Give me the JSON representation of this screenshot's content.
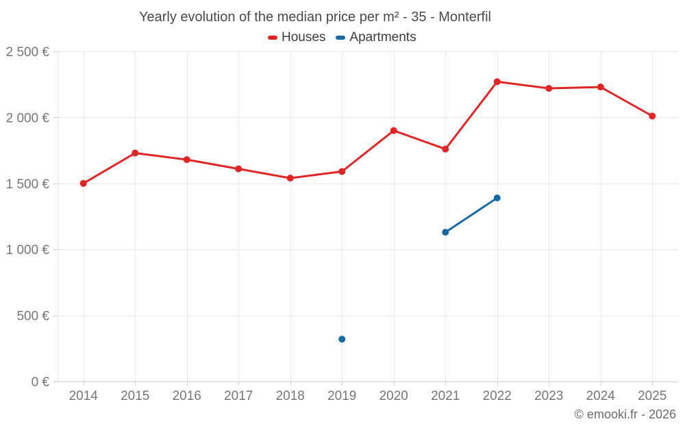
{
  "chart_data": {
    "type": "line",
    "title": "Yearly evolution of the median price per m² - 35 - Monterfil",
    "categories": [
      "2014",
      "2015",
      "2016",
      "2017",
      "2018",
      "2019",
      "2020",
      "2021",
      "2022",
      "2023",
      "2024",
      "2025"
    ],
    "series": [
      {
        "name": "Houses",
        "color": "#e02524",
        "values": [
          1500,
          1730,
          1680,
          1610,
          1540,
          1590,
          1900,
          1760,
          2270,
          2220,
          2230,
          2010
        ]
      },
      {
        "name": "Apartments",
        "color": "#176aa3",
        "values": [
          null,
          null,
          null,
          null,
          null,
          320,
          null,
          1130,
          1390,
          null,
          null,
          null
        ]
      }
    ],
    "xlabel": "",
    "ylabel": "",
    "ylim": [
      0,
      2500
    ],
    "yticks": [
      0,
      500,
      1000,
      1500,
      2000,
      2500
    ],
    "ytick_labels": [
      "0 €",
      "500 €",
      "1 000 €",
      "1 500 €",
      "2 000 €",
      "2 500 €"
    ],
    "grid": true,
    "legend_position": "top"
  },
  "footer": {
    "credit": "© emooki.fr - 2026"
  },
  "colors": {
    "background": "#ffffff",
    "grid": "#e9e9e9",
    "axis": "#cfcfcf",
    "axis_label": "#757575",
    "title_text": "#4a4a4a",
    "legend_text": "#3c3c3c",
    "credit_text": "#6b6b6b",
    "houses": "#e02524",
    "apartments": "#176aa3"
  }
}
